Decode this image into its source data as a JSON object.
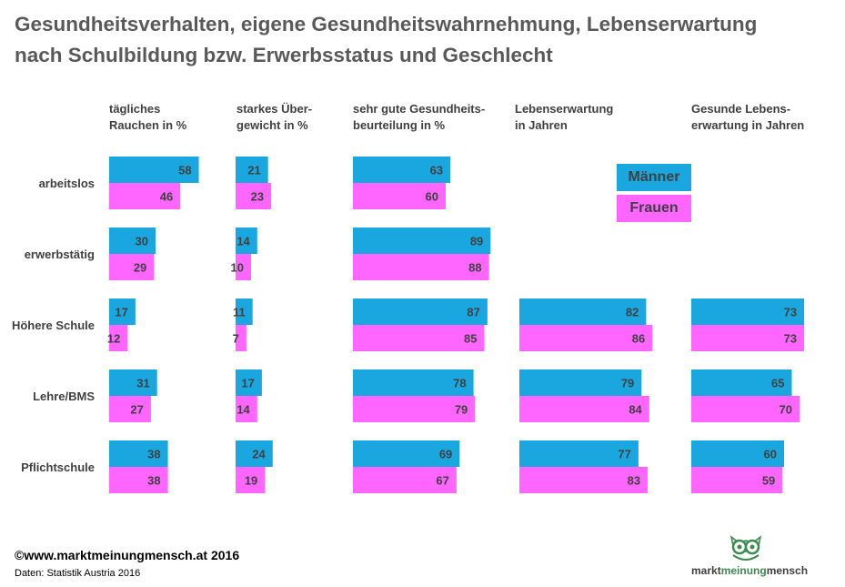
{
  "title": {
    "line1": "Gesundheitsverhalten, eigene Gesundheitswahrnehmung, Lebenserwartung",
    "line2": "nach Schulbildung bzw. Erwerbsstatus und Geschlecht"
  },
  "colors": {
    "men": "#1aa7e0",
    "women": "#ff66ff",
    "text": "#404040"
  },
  "legend": {
    "men": "Männer",
    "women": "Frauen"
  },
  "chart_data": {
    "type": "bar",
    "orientation": "horizontal",
    "categories": [
      "arbeitslos",
      "erwerbstätig",
      "Höhere Schule",
      "Lehre/BMS",
      "Pflichtschule"
    ],
    "panels": [
      {
        "label": [
          "tägliches",
          "Rauchen in %"
        ],
        "series": [
          {
            "name": "Männer",
            "values": [
              58,
              30,
              17,
              31,
              38
            ]
          },
          {
            "name": "Frauen",
            "values": [
              46,
              29,
              12,
              27,
              38
            ]
          }
        ]
      },
      {
        "label": [
          "starkes Über-",
          "gewicht in %"
        ],
        "series": [
          {
            "name": "Männer",
            "values": [
              21,
              14,
              11,
              17,
              24
            ]
          },
          {
            "name": "Frauen",
            "values": [
              23,
              10,
              7,
              14,
              19
            ]
          }
        ]
      },
      {
        "label": [
          "sehr gute Gesundheits-",
          "beurteilung in %"
        ],
        "series": [
          {
            "name": "Männer",
            "values": [
              63,
              89,
              87,
              78,
              69
            ]
          },
          {
            "name": "Frauen",
            "values": [
              60,
              88,
              85,
              79,
              67
            ]
          }
        ]
      },
      {
        "label": [
          "Lebenserwartung",
          "in Jahren"
        ],
        "series": [
          {
            "name": "Männer",
            "values": [
              null,
              null,
              82,
              79,
              77
            ]
          },
          {
            "name": "Frauen",
            "values": [
              null,
              null,
              86,
              84,
              83
            ]
          }
        ]
      },
      {
        "label": [
          "Gesunde Lebens-",
          "erwartung in Jahren"
        ],
        "series": [
          {
            "name": "Männer",
            "values": [
              null,
              null,
              73,
              65,
              60
            ]
          },
          {
            "name": "Frauen",
            "values": [
              null,
              null,
              73,
              70,
              59
            ]
          }
        ]
      }
    ]
  },
  "footer": {
    "source": "©www.marktmeinungmensch.at 2016",
    "data_note": "Daten: Statistik Austria 2016"
  },
  "logo": {
    "part1": "markt",
    "part2": "meinung",
    "part3": "mensch"
  }
}
